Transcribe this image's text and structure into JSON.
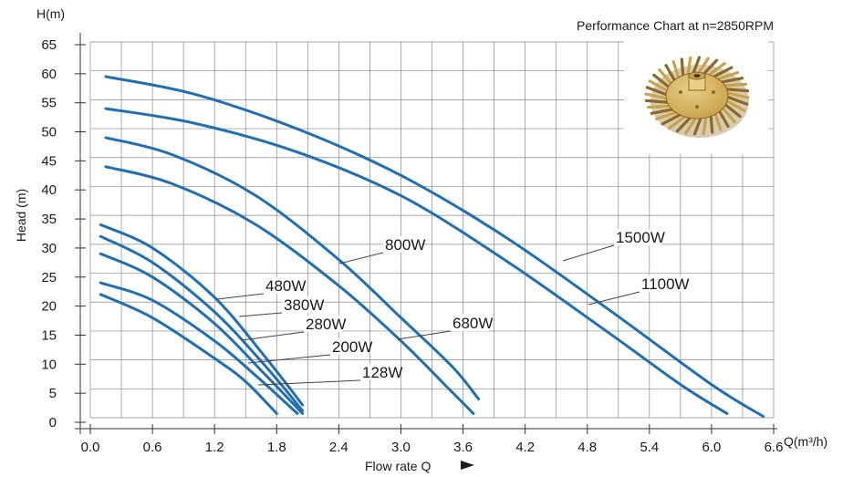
{
  "chart_data": {
    "type": "line",
    "title": "Performance Chart at n=2850RPM",
    "x_unit_label": "Q(m³/h)",
    "xlabel": "Flow rate Q",
    "y_unit_label": "H(m)",
    "ylabel": "Head (m)",
    "xlim": [
      0,
      6.6
    ],
    "ylim": [
      0,
      65
    ],
    "x_ticks": [
      "0.0",
      "0.6",
      "1.2",
      "1.8",
      "2.4",
      "3.0",
      "3.6",
      "4.2",
      "4.8",
      "5.4",
      "6.0",
      "6.6"
    ],
    "y_ticks": [
      "0",
      "5",
      "10",
      "15",
      "20",
      "25",
      "30",
      "35",
      "40",
      "45",
      "50",
      "55",
      "60",
      "65"
    ],
    "grid": true,
    "line_color": "#1f6fb5",
    "series": [
      {
        "name": "1500W",
        "x": [
          0.15,
          1.0,
          2.0,
          3.0,
          4.0,
          5.0,
          6.0,
          6.5
        ],
        "y": [
          59.5,
          56.5,
          50.5,
          42.5,
          32.0,
          19.5,
          6.5,
          1.0
        ]
      },
      {
        "name": "1100W",
        "x": [
          0.15,
          1.0,
          2.0,
          3.0,
          4.0,
          5.0,
          5.7,
          6.15
        ],
        "y": [
          54.0,
          51.5,
          46.5,
          39.0,
          28.0,
          15.5,
          6.5,
          1.5
        ]
      },
      {
        "name": "800W",
        "x": [
          0.15,
          0.8,
          1.6,
          2.4,
          3.0,
          3.5,
          3.75
        ],
        "y": [
          49.0,
          46.0,
          39.0,
          28.0,
          18.0,
          9.5,
          4.0
        ]
      },
      {
        "name": "680W",
        "x": [
          0.15,
          0.8,
          1.6,
          2.4,
          3.0,
          3.45,
          3.7
        ],
        "y": [
          44.0,
          41.0,
          34.0,
          23.5,
          14.0,
          6.0,
          1.5
        ]
      },
      {
        "name": "480W",
        "x": [
          0.1,
          0.6,
          1.2,
          1.7,
          2.05
        ],
        "y": [
          34.0,
          30.0,
          21.5,
          11.0,
          3.0
        ]
      },
      {
        "name": "380W",
        "x": [
          0.1,
          0.6,
          1.2,
          1.7,
          2.05
        ],
        "y": [
          32.0,
          27.5,
          19.0,
          9.5,
          2.0
        ]
      },
      {
        "name": "280W",
        "x": [
          0.1,
          0.6,
          1.2,
          1.7,
          2.05
        ],
        "y": [
          29.0,
          25.0,
          17.0,
          8.0,
          1.5
        ]
      },
      {
        "name": "200W",
        "x": [
          0.1,
          0.6,
          1.2,
          1.6,
          2.0
        ],
        "y": [
          24.0,
          21.0,
          14.0,
          8.0,
          1.5
        ]
      },
      {
        "name": "128W",
        "x": [
          0.1,
          0.6,
          1.2,
          1.5,
          1.8
        ],
        "y": [
          22.0,
          18.0,
          11.0,
          7.0,
          1.5
        ]
      }
    ],
    "annotations": [
      {
        "text": "1500W",
        "target_series": "1500W"
      },
      {
        "text": "1100W",
        "target_series": "1100W"
      },
      {
        "text": "800W",
        "target_series": "800W"
      },
      {
        "text": "680W",
        "target_series": "680W"
      },
      {
        "text": "480W",
        "target_series": "480W"
      },
      {
        "text": "380W",
        "target_series": "380W"
      },
      {
        "text": "280W",
        "target_series": "280W"
      },
      {
        "text": "200W",
        "target_series": "200W"
      },
      {
        "text": "128W",
        "target_series": "128W"
      }
    ]
  },
  "inset_image": {
    "subject": "brass pump impeller",
    "colors": [
      "#c9a24a",
      "#e8cf86",
      "#8a6a24"
    ]
  }
}
